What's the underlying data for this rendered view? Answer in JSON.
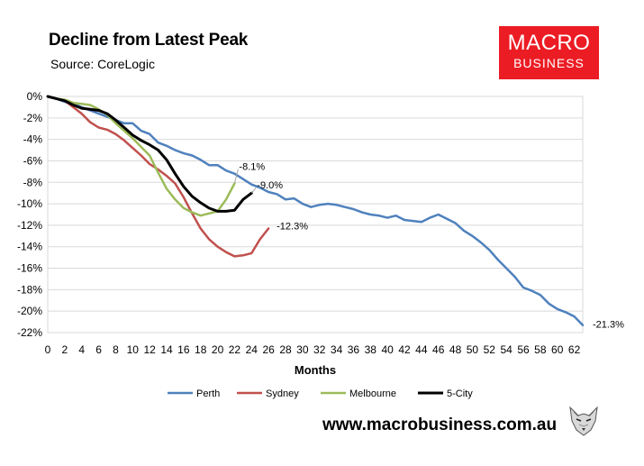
{
  "header": {
    "title": "Decline from Latest Peak",
    "subtitle": "Source: CoreLogic"
  },
  "logo": {
    "line1": "MACRO",
    "line2": "BUSINESS"
  },
  "footer": {
    "url": "www.macrobusiness.com.au"
  },
  "colors": {
    "brand_red": "#ec1c24"
  },
  "icons": {
    "corner_logo": "fox-head-icon"
  },
  "chart_data": {
    "type": "line",
    "title": "Decline from Latest Peak",
    "xlabel": "Months",
    "ylabel": "",
    "xlim": [
      0,
      63
    ],
    "ylim": [
      -22,
      0
    ],
    "x_ticks": [
      0,
      2,
      4,
      6,
      8,
      10,
      12,
      14,
      16,
      18,
      20,
      22,
      24,
      26,
      28,
      30,
      32,
      34,
      36,
      38,
      40,
      42,
      44,
      46,
      48,
      50,
      52,
      54,
      56,
      58,
      60,
      62
    ],
    "y_ticks": [
      0,
      -2,
      -4,
      -6,
      -8,
      -10,
      -12,
      -14,
      -16,
      -18,
      -20,
      -22
    ],
    "y_tick_labels": [
      "0%",
      "-2%",
      "-4%",
      "-6%",
      "-8%",
      "-10%",
      "-12%",
      "-14%",
      "-16%",
      "-18%",
      "-20%",
      "-22%"
    ],
    "grid": true,
    "legend_position": "bottom",
    "series": [
      {
        "name": "Perth",
        "color": "#4f81bd",
        "end_label": "-21.3%",
        "values": [
          0,
          -0.2,
          -0.5,
          -0.7,
          -1.0,
          -1.3,
          -1.6,
          -1.9,
          -2.2,
          -2.5,
          -2.5,
          -3.2,
          -3.5,
          -4.3,
          -4.6,
          -5.0,
          -5.3,
          -5.5,
          -5.9,
          -6.4,
          -6.4,
          -6.9,
          -7.2,
          -7.7,
          -8.2,
          -8.5,
          -8.9,
          -9.1,
          -9.6,
          -9.5,
          -10.0,
          -10.3,
          -10.1,
          -10.0,
          -10.1,
          -10.3,
          -10.5,
          -10.8,
          -11.0,
          -11.1,
          -11.3,
          -11.1,
          -11.5,
          -11.6,
          -11.7,
          -11.3,
          -11.0,
          -11.4,
          -11.8,
          -12.5,
          -13.0,
          -13.6,
          -14.3,
          -15.2,
          -16.0,
          -16.8,
          -17.8,
          -18.1,
          -18.5,
          -19.3,
          -19.8,
          -20.1,
          -20.5,
          -21.3
        ]
      },
      {
        "name": "Sydney",
        "color": "#c0504d",
        "end_label": "-12.3%",
        "values": [
          0,
          -0.2,
          -0.4,
          -1.0,
          -1.6,
          -2.4,
          -2.9,
          -3.1,
          -3.5,
          -4.1,
          -4.8,
          -5.5,
          -6.3,
          -6.8,
          -7.4,
          -8.1,
          -9.4,
          -10.9,
          -12.3,
          -13.3,
          -14.0,
          -14.5,
          -14.9,
          -14.8,
          -14.6,
          -13.3,
          -12.3
        ]
      },
      {
        "name": "Melbourne",
        "color": "#9bbb59",
        "end_label": "-8.1%",
        "values": [
          0,
          -0.2,
          -0.3,
          -0.6,
          -0.7,
          -0.8,
          -1.2,
          -1.7,
          -2.5,
          -3.2,
          -3.9,
          -4.7,
          -5.5,
          -7.1,
          -8.6,
          -9.6,
          -10.4,
          -10.8,
          -11.1,
          -10.9,
          -10.7,
          -9.6,
          -8.1
        ]
      },
      {
        "name": "5-City",
        "color": "#000000",
        "end_label": "-9.0%",
        "values": [
          0,
          -0.2,
          -0.4,
          -0.8,
          -1.1,
          -1.2,
          -1.3,
          -1.6,
          -2.2,
          -2.9,
          -3.6,
          -4.1,
          -4.5,
          -5.0,
          -5.9,
          -7.2,
          -8.4,
          -9.3,
          -9.9,
          -10.4,
          -10.7,
          -10.7,
          -10.6,
          -9.6,
          -9.0
        ]
      }
    ]
  }
}
